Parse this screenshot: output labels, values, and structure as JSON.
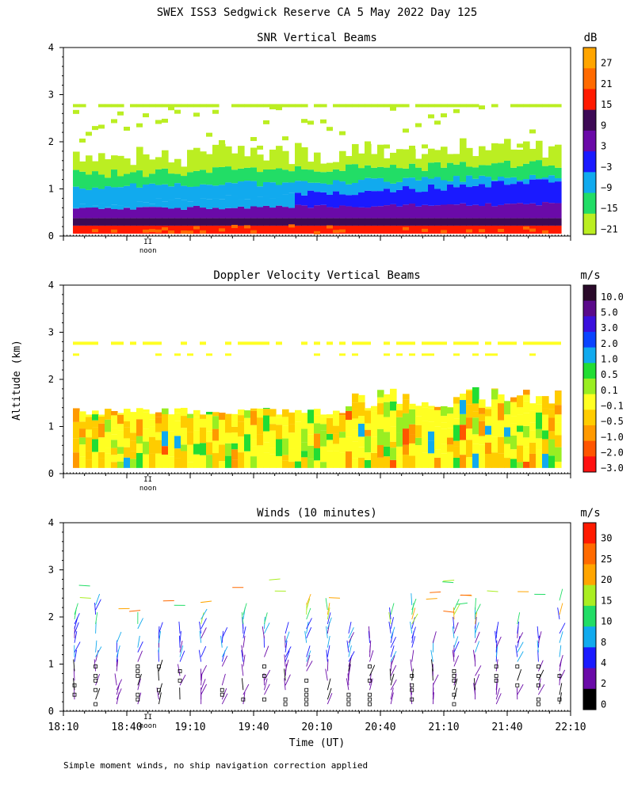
{
  "page_title": "SWEX ISS3 Sedgwick Reserve CA   5 May 2022 Day 125",
  "shared_ylabel": "Altitude (km)",
  "footnote": "Simple moment winds, no ship navigation correction applied",
  "x_axis": {
    "label": "Time (UT)",
    "ticks": [
      "18:10",
      "18:40",
      "19:10",
      "19:40",
      "20:10",
      "20:40",
      "21:10",
      "21:40",
      "22:10"
    ],
    "noon_label": "noon",
    "noon_marker": "II"
  },
  "chart_data": [
    {
      "type": "heatmap",
      "title": "SNR Vertical Beams",
      "unit": "dB",
      "xlabel": "Time (UT)",
      "ylabel": "Altitude (km)",
      "xlim": [
        "18:10",
        "22:10"
      ],
      "ylim": [
        0,
        4
      ],
      "yticks": [
        "0",
        "1",
        "2",
        "3",
        "4"
      ],
      "colorbar": {
        "labels": [
          "27",
          "21",
          "15",
          "9",
          "3",
          "−3",
          "−9",
          "−15",
          "−21"
        ],
        "colors": [
          "#ffa500",
          "#ff6a00",
          "#ff1a00",
          "#3d0a55",
          "#6a0aa8",
          "#1a1aff",
          "#11aaee",
          "#22dd66",
          "#bbee22"
        ]
      },
      "layers": [
        {
          "alt_range": [
            0.0,
            0.3
          ],
          "value": 15
        },
        {
          "alt_range": [
            0.3,
            0.7
          ],
          "value": 9
        },
        {
          "alt_range": [
            0.7,
            1.1
          ],
          "value": -3
        },
        {
          "alt_range": [
            1.1,
            1.4
          ],
          "value": -15
        },
        {
          "alt_range": [
            1.4,
            2.0
          ],
          "value": -21
        },
        {
          "alt_range": [
            2.7,
            2.8
          ],
          "value": -21
        }
      ]
    },
    {
      "type": "heatmap",
      "title": "Doppler Velocity Vertical Beams",
      "unit": "m/s",
      "xlabel": "Time (UT)",
      "ylabel": "Altitude (km)",
      "xlim": [
        "18:10",
        "22:10"
      ],
      "ylim": [
        0,
        4
      ],
      "yticks": [
        "0",
        "1",
        "2",
        "3",
        "4"
      ],
      "colorbar": {
        "labels": [
          "10.0",
          "5.0",
          "3.0",
          "2.0",
          "1.0",
          "0.5",
          "0.1",
          "−0.1",
          "−0.5",
          "−1.0",
          "−2.0",
          "−3.0"
        ],
        "colors": [
          "#2a0a2a",
          "#5a0a8a",
          "#3a10dd",
          "#0a44ff",
          "#11aaee",
          "#22dd33",
          "#99ee22",
          "#ffff22",
          "#ffcc00",
          "#ff9900",
          "#ff5500",
          "#ff1111"
        ]
      },
      "layers": [
        {
          "alt_range": [
            0.1,
            0.4
          ],
          "value": -0.1
        },
        {
          "alt_range": [
            0.4,
            1.3
          ],
          "value": -0.5
        },
        {
          "alt_range": [
            1.3,
            1.9
          ],
          "value": 0.1
        }
      ]
    },
    {
      "type": "scatter",
      "title": "Winds (10 minutes)",
      "unit": "m/s",
      "xlabel": "Time (UT)",
      "ylabel": "Altitude (km)",
      "xlim": [
        "18:10",
        "22:10"
      ],
      "ylim": [
        0,
        4
      ],
      "yticks": [
        "0",
        "1",
        "2",
        "3",
        "4"
      ],
      "colorbar": {
        "labels": [
          "30",
          "25",
          "20",
          "15",
          "10",
          "8",
          "4",
          "2",
          "0"
        ],
        "colors": [
          "#ff1a00",
          "#ff6a00",
          "#ffa500",
          "#aaee22",
          "#22dd66",
          "#11aaee",
          "#1a1aff",
          "#6a0aa8",
          "#000000"
        ]
      }
    }
  ]
}
